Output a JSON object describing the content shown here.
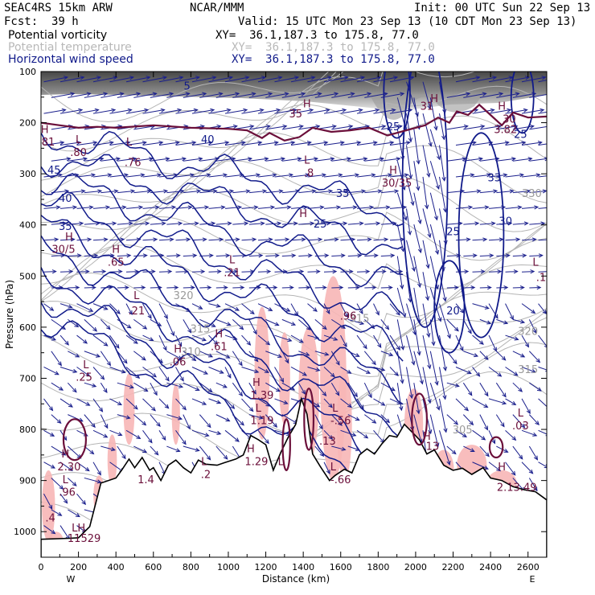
{
  "header": {
    "model": "SEAC4RS 15km ARW",
    "center": "NCAR/MMM",
    "init": "Init: 00 UTC Sun 22 Sep 13",
    "fcst_label": "Fcst:",
    "fcst_value": "39 h",
    "valid": "Valid: 15 UTC Mon 23 Sep 13 (10 CDT Mon 23 Sep 13)",
    "fields": [
      {
        "name": "Potential vorticity",
        "xy": "XY=  36.1,187.3 to 175.8, 77.0",
        "color": "#000000"
      },
      {
        "name": "Potential temperature",
        "xy": "XY=  36.1,187.3 to 175.8, 77.0",
        "color": "#b8b8b8"
      },
      {
        "name": "Horizontal wind speed",
        "xy": "XY=  36.1,187.3 to 175.8, 77.0",
        "color": "#101a8a"
      }
    ]
  },
  "chart_data": {
    "type": "vertical cross-section (contour + wind vectors)",
    "xlabel": "Distance (km)",
    "ylabel": "Pressure (hPa)",
    "x_ticks": [
      "0",
      "200",
      "400",
      "600",
      "800",
      "1000",
      "1200",
      "1400",
      "1600",
      "1800",
      "2000",
      "2200",
      "2400",
      "2600"
    ],
    "y_ticks": [
      "100",
      "200",
      "300",
      "400",
      "500",
      "600",
      "700",
      "800",
      "900",
      "1000"
    ],
    "xlim": [
      0,
      2700
    ],
    "ylim": [
      1050,
      100
    ],
    "x_end_labels": {
      "left": "W",
      "right": "E"
    },
    "colors": {
      "wind_vectors": "#1a1f8c",
      "wind_speed_contours": "#101a8a",
      "theta_contours": "#b5b5b5",
      "pv_contours": "#6b0f3a",
      "pv_shading": "#f7b6b6",
      "terrain": "#000000"
    },
    "theta_labels": [
      {
        "text": "320",
        "x": 760,
        "p": 545
      },
      {
        "text": "315",
        "x": 850,
        "p": 610
      },
      {
        "text": "310",
        "x": 800,
        "p": 655
      },
      {
        "text": "315",
        "x": 1700,
        "p": 590
      },
      {
        "text": "305",
        "x": 2250,
        "p": 808
      },
      {
        "text": "320",
        "x": 2600,
        "p": 615
      },
      {
        "text": "315",
        "x": 2600,
        "p": 690
      },
      {
        "text": "330",
        "x": 2620,
        "p": 345
      }
    ],
    "speed_labels": [
      {
        "text": "45",
        "x": 70,
        "p": 300
      },
      {
        "text": "40",
        "x": 130,
        "p": 355
      },
      {
        "text": "35",
        "x": 130,
        "p": 410
      },
      {
        "text": "40",
        "x": 890,
        "p": 240
      },
      {
        "text": "25",
        "x": 1490,
        "p": 405
      },
      {
        "text": "35",
        "x": 1610,
        "p": 345
      },
      {
        "text": "25",
        "x": 1880,
        "p": 215
      },
      {
        "text": "20",
        "x": 2200,
        "p": 575
      },
      {
        "text": "25",
        "x": 2200,
        "p": 420
      },
      {
        "text": "33",
        "x": 2420,
        "p": 315
      },
      {
        "text": "30",
        "x": 2480,
        "p": 400
      },
      {
        "text": "25",
        "x": 2560,
        "p": 230
      },
      {
        "text": "5",
        "x": 780,
        "p": 135
      }
    ],
    "pv_labels": [
      {
        "text": "H",
        "x": 20,
        "p": 220
      },
      {
        "text": ".81",
        "x": 30,
        "p": 245
      },
      {
        "text": "L",
        "x": 200,
        "p": 240
      },
      {
        "text": ".80",
        "x": 200,
        "p": 265
      },
      {
        "text": "L",
        "x": 470,
        "p": 245
      },
      {
        "text": ".76",
        "x": 490,
        "p": 285
      },
      {
        "text": "H",
        "x": 150,
        "p": 430
      },
      {
        "text": "30/5",
        "x": 120,
        "p": 455
      },
      {
        "text": "H",
        "x": 400,
        "p": 455
      },
      {
        "text": ".65",
        "x": 400,
        "p": 480
      },
      {
        "text": "L",
        "x": 1020,
        "p": 475
      },
      {
        "text": ".21",
        "x": 1020,
        "p": 500
      },
      {
        "text": "L",
        "x": 510,
        "p": 545
      },
      {
        "text": ".21",
        "x": 510,
        "p": 575
      },
      {
        "text": "H",
        "x": 950,
        "p": 620
      },
      {
        "text": ".61",
        "x": 950,
        "p": 645
      },
      {
        "text": "H",
        "x": 730,
        "p": 650
      },
      {
        "text": ".06",
        "x": 730,
        "p": 675
      },
      {
        "text": "L",
        "x": 240,
        "p": 680
      },
      {
        "text": ".25",
        "x": 230,
        "p": 705
      },
      {
        "text": "H",
        "x": 1150,
        "p": 715
      },
      {
        "text": "1.39",
        "x": 1180,
        "p": 740
      },
      {
        "text": "L",
        "x": 1160,
        "p": 765
      },
      {
        "text": "1.19",
        "x": 1180,
        "p": 790
      },
      {
        "text": "L",
        "x": 1570,
        "p": 765
      },
      {
        "text": "-.56",
        "x": 1600,
        "p": 790
      },
      {
        "text": ".13",
        "x": 1530,
        "p": 830
      },
      {
        "text": "H",
        "x": 1400,
        "p": 385
      },
      {
        "text": ".96",
        "x": 1640,
        "p": 585
      },
      {
        "text": "H",
        "x": 1420,
        "p": 170
      },
      {
        "text": "35",
        "x": 1360,
        "p": 190
      },
      {
        "text": "L",
        "x": 1420,
        "p": 280
      },
      {
        "text": ".8",
        "x": 1430,
        "p": 305
      },
      {
        "text": "H",
        "x": 1880,
        "p": 300
      },
      {
        "text": "30/35",
        "x": 1900,
        "p": 325
      },
      {
        "text": "H",
        "x": 2100,
        "p": 160
      },
      {
        "text": "31",
        "x": 2060,
        "p": 175
      },
      {
        "text": "H",
        "x": 2460,
        "p": 175
      },
      {
        "text": "30",
        "x": 2500,
        "p": 200
      },
      {
        "text": "3.82",
        "x": 2480,
        "p": 220
      },
      {
        "text": "H",
        "x": 1120,
        "p": 845
      },
      {
        "text": "1.29",
        "x": 1150,
        "p": 870
      },
      {
        "text": "L",
        "x": 1560,
        "p": 880
      },
      {
        "text": "-.66",
        "x": 1600,
        "p": 905
      },
      {
        "text": "L",
        "x": 870,
        "p": 870
      },
      {
        "text": ".2",
        "x": 880,
        "p": 895
      },
      {
        "text": "1.4",
        "x": 560,
        "p": 905
      },
      {
        "text": "H",
        "x": 130,
        "p": 855
      },
      {
        "text": "2.30",
        "x": 150,
        "p": 880
      },
      {
        "text": "L",
        "x": 130,
        "p": 905
      },
      {
        "text": ".96",
        "x": 140,
        "p": 930
      },
      {
        "text": ".4",
        "x": 50,
        "p": 980
      },
      {
        "text": "LH",
        "x": 200,
        "p": 1000
      },
      {
        "text": "11529",
        "x": 230,
        "p": 1020
      },
      {
        "text": "L",
        "x": 1280,
        "p": 870
      },
      {
        "text": "H",
        "x": 2060,
        "p": 820
      },
      {
        "text": "13",
        "x": 2090,
        "p": 840
      },
      {
        "text": "H",
        "x": 2460,
        "p": 880
      },
      {
        "text": "2.13.49",
        "x": 2540,
        "p": 920
      },
      {
        "text": "L",
        "x": 2560,
        "p": 775
      },
      {
        "text": ".03",
        "x": 2560,
        "p": 800
      },
      {
        "text": "L",
        "x": 2640,
        "p": 480
      },
      {
        "text": ".1",
        "x": 2670,
        "p": 510
      }
    ]
  }
}
